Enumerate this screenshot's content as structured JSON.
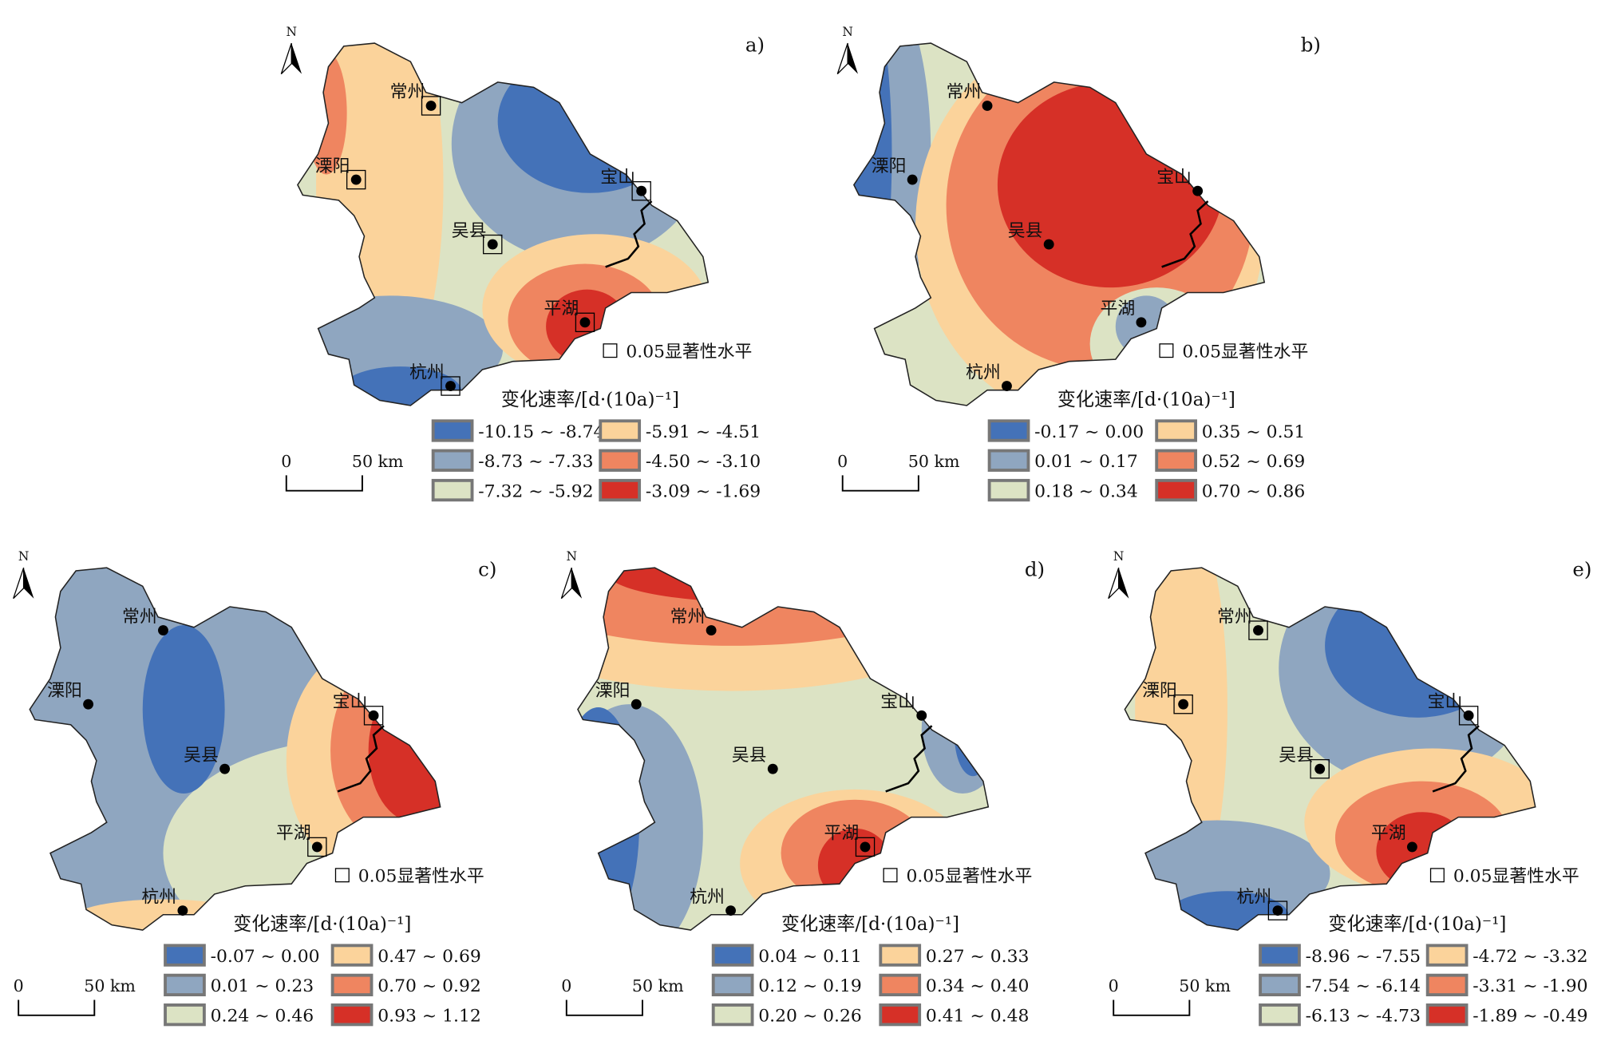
{
  "palette": [
    "#4472b8",
    "#8fa6c0",
    "#dce3c4",
    "#fbd39b",
    "#ef8560",
    "#d63027"
  ],
  "north_label": "N",
  "scale": {
    "zero": "0",
    "distance": "50 km"
  },
  "significance_label": "0.05显著性水平",
  "legend_title": "变化速率/[d·(10a)⁻¹]",
  "cities": [
    "常州",
    "溧阳",
    "宝山",
    "吴县",
    "平湖",
    "杭州"
  ],
  "panels": [
    {
      "label": "a)",
      "legend": [
        "-10.15 ~ -8.74",
        "-8.73 ~ -7.33",
        "-7.32 ~ -5.92",
        "-5.91 ~ -4.51",
        "-4.50 ~ -3.10",
        "-3.09 ~ -1.69"
      ],
      "significant_cities": [
        "常州",
        "溧阳",
        "宝山",
        "吴县",
        "平湖",
        "杭州"
      ]
    },
    {
      "label": "b)",
      "legend": [
        "-0.17 ~ 0.00",
        "0.01 ~ 0.17",
        "0.18 ~ 0.34",
        "0.35 ~ 0.51",
        "0.52 ~ 0.69",
        "0.70 ~ 0.86"
      ],
      "significant_cities": []
    },
    {
      "label": "c)",
      "legend": [
        "-0.07 ~ 0.00",
        "0.01 ~ 0.23",
        "0.24 ~ 0.46",
        "0.47 ~ 0.69",
        "0.70 ~ 0.92",
        "0.93 ~ 1.12"
      ],
      "significant_cities": [
        "宝山",
        "平湖"
      ]
    },
    {
      "label": "d)",
      "legend": [
        "0.04 ~ 0.11",
        "0.12 ~ 0.19",
        "0.20 ~ 0.26",
        "0.27 ~ 0.33",
        "0.34 ~ 0.40",
        "0.41 ~ 0.48"
      ],
      "significant_cities": [
        "平湖"
      ]
    },
    {
      "label": "e)",
      "legend": [
        "-8.96 ~ -7.55",
        "-7.54 ~ -6.14",
        "-6.13 ~ -4.73",
        "-4.72 ~ -3.32",
        "-3.31 ~ -1.90",
        "-1.89 ~ -0.49"
      ],
      "significant_cities": [
        "常州",
        "溧阳",
        "宝山",
        "吴县",
        "杭州"
      ]
    }
  ]
}
